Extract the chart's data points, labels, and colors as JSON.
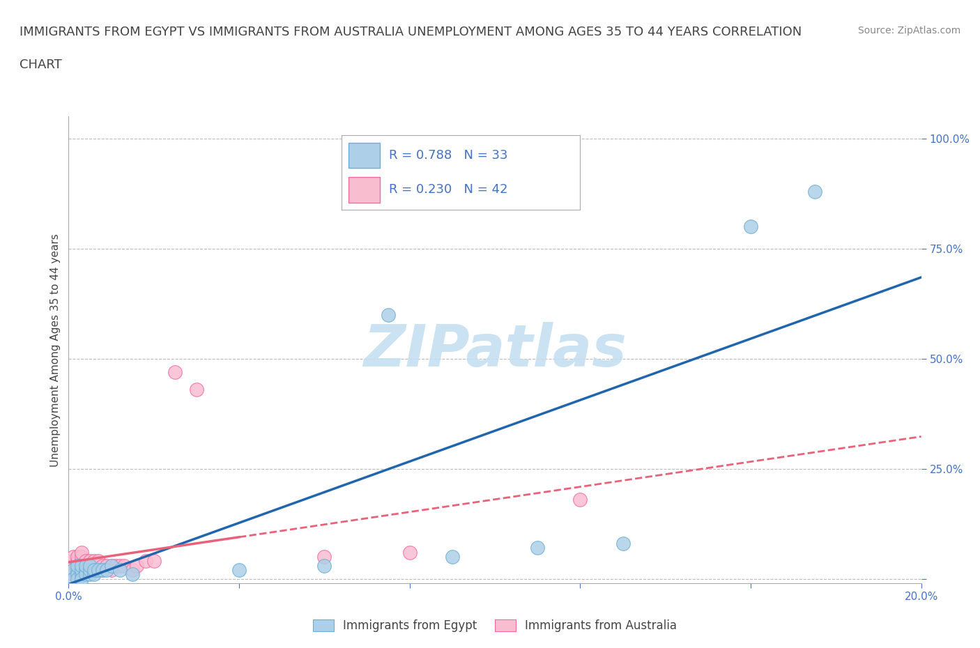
{
  "title_line1": "IMMIGRANTS FROM EGYPT VS IMMIGRANTS FROM AUSTRALIA UNEMPLOYMENT AMONG AGES 35 TO 44 YEARS CORRELATION",
  "title_line2": "CHART",
  "source": "Source: ZipAtlas.com",
  "ylabel": "Unemployment Among Ages 35 to 44 years",
  "xlim": [
    0.0,
    0.2
  ],
  "ylim": [
    -0.01,
    1.05
  ],
  "xticks": [
    0.0,
    0.04,
    0.08,
    0.12,
    0.16,
    0.2
  ],
  "xtick_labels": [
    "0.0%",
    "",
    "",
    "",
    "",
    "20.0%"
  ],
  "ytick_positions": [
    0.0,
    0.25,
    0.5,
    0.75,
    1.0
  ],
  "ytick_labels": [
    "",
    "25.0%",
    "50.0%",
    "75.0%",
    "100.0%"
  ],
  "egypt_color": "#aecfe8",
  "egypt_edge": "#6baed6",
  "australia_color": "#f9bdd0",
  "australia_edge": "#f768a1",
  "egypt_R": 0.788,
  "egypt_N": 33,
  "australia_R": 0.23,
  "australia_N": 42,
  "regression_blue_color": "#2166ac",
  "regression_pink_color": "#e8637a",
  "watermark": "ZIPatlas",
  "watermark_color": "#c5dff0",
  "background": "#ffffff",
  "grid_color": "#bbbbbb",
  "egypt_x": [
    0.001,
    0.001,
    0.001,
    0.002,
    0.002,
    0.002,
    0.002,
    0.003,
    0.003,
    0.003,
    0.003,
    0.004,
    0.004,
    0.004,
    0.005,
    0.005,
    0.005,
    0.006,
    0.006,
    0.007,
    0.008,
    0.009,
    0.01,
    0.012,
    0.015,
    0.04,
    0.06,
    0.075,
    0.09,
    0.11,
    0.13,
    0.16,
    0.175
  ],
  "egypt_y": [
    0.01,
    0.02,
    0.0,
    0.02,
    0.01,
    0.03,
    0.0,
    0.01,
    0.02,
    0.03,
    0.0,
    0.02,
    0.01,
    0.03,
    0.01,
    0.02,
    0.03,
    0.01,
    0.02,
    0.02,
    0.02,
    0.02,
    0.03,
    0.02,
    0.01,
    0.02,
    0.03,
    0.6,
    0.05,
    0.07,
    0.08,
    0.8,
    0.88
  ],
  "australia_x": [
    0.001,
    0.001,
    0.001,
    0.001,
    0.002,
    0.002,
    0.002,
    0.002,
    0.003,
    0.003,
    0.003,
    0.003,
    0.003,
    0.004,
    0.004,
    0.004,
    0.005,
    0.005,
    0.005,
    0.006,
    0.006,
    0.006,
    0.007,
    0.007,
    0.007,
    0.008,
    0.008,
    0.009,
    0.01,
    0.01,
    0.011,
    0.012,
    0.013,
    0.015,
    0.016,
    0.018,
    0.02,
    0.025,
    0.03,
    0.06,
    0.08,
    0.12
  ],
  "australia_y": [
    0.02,
    0.03,
    0.04,
    0.05,
    0.02,
    0.03,
    0.04,
    0.05,
    0.02,
    0.03,
    0.04,
    0.05,
    0.06,
    0.02,
    0.03,
    0.04,
    0.02,
    0.03,
    0.04,
    0.02,
    0.03,
    0.04,
    0.02,
    0.03,
    0.04,
    0.02,
    0.03,
    0.03,
    0.02,
    0.03,
    0.03,
    0.03,
    0.03,
    0.02,
    0.03,
    0.04,
    0.04,
    0.47,
    0.43,
    0.05,
    0.06,
    0.18
  ],
  "title_fontsize": 13,
  "axis_label_fontsize": 11,
  "tick_fontsize": 11,
  "legend_fontsize": 13,
  "source_fontsize": 10
}
